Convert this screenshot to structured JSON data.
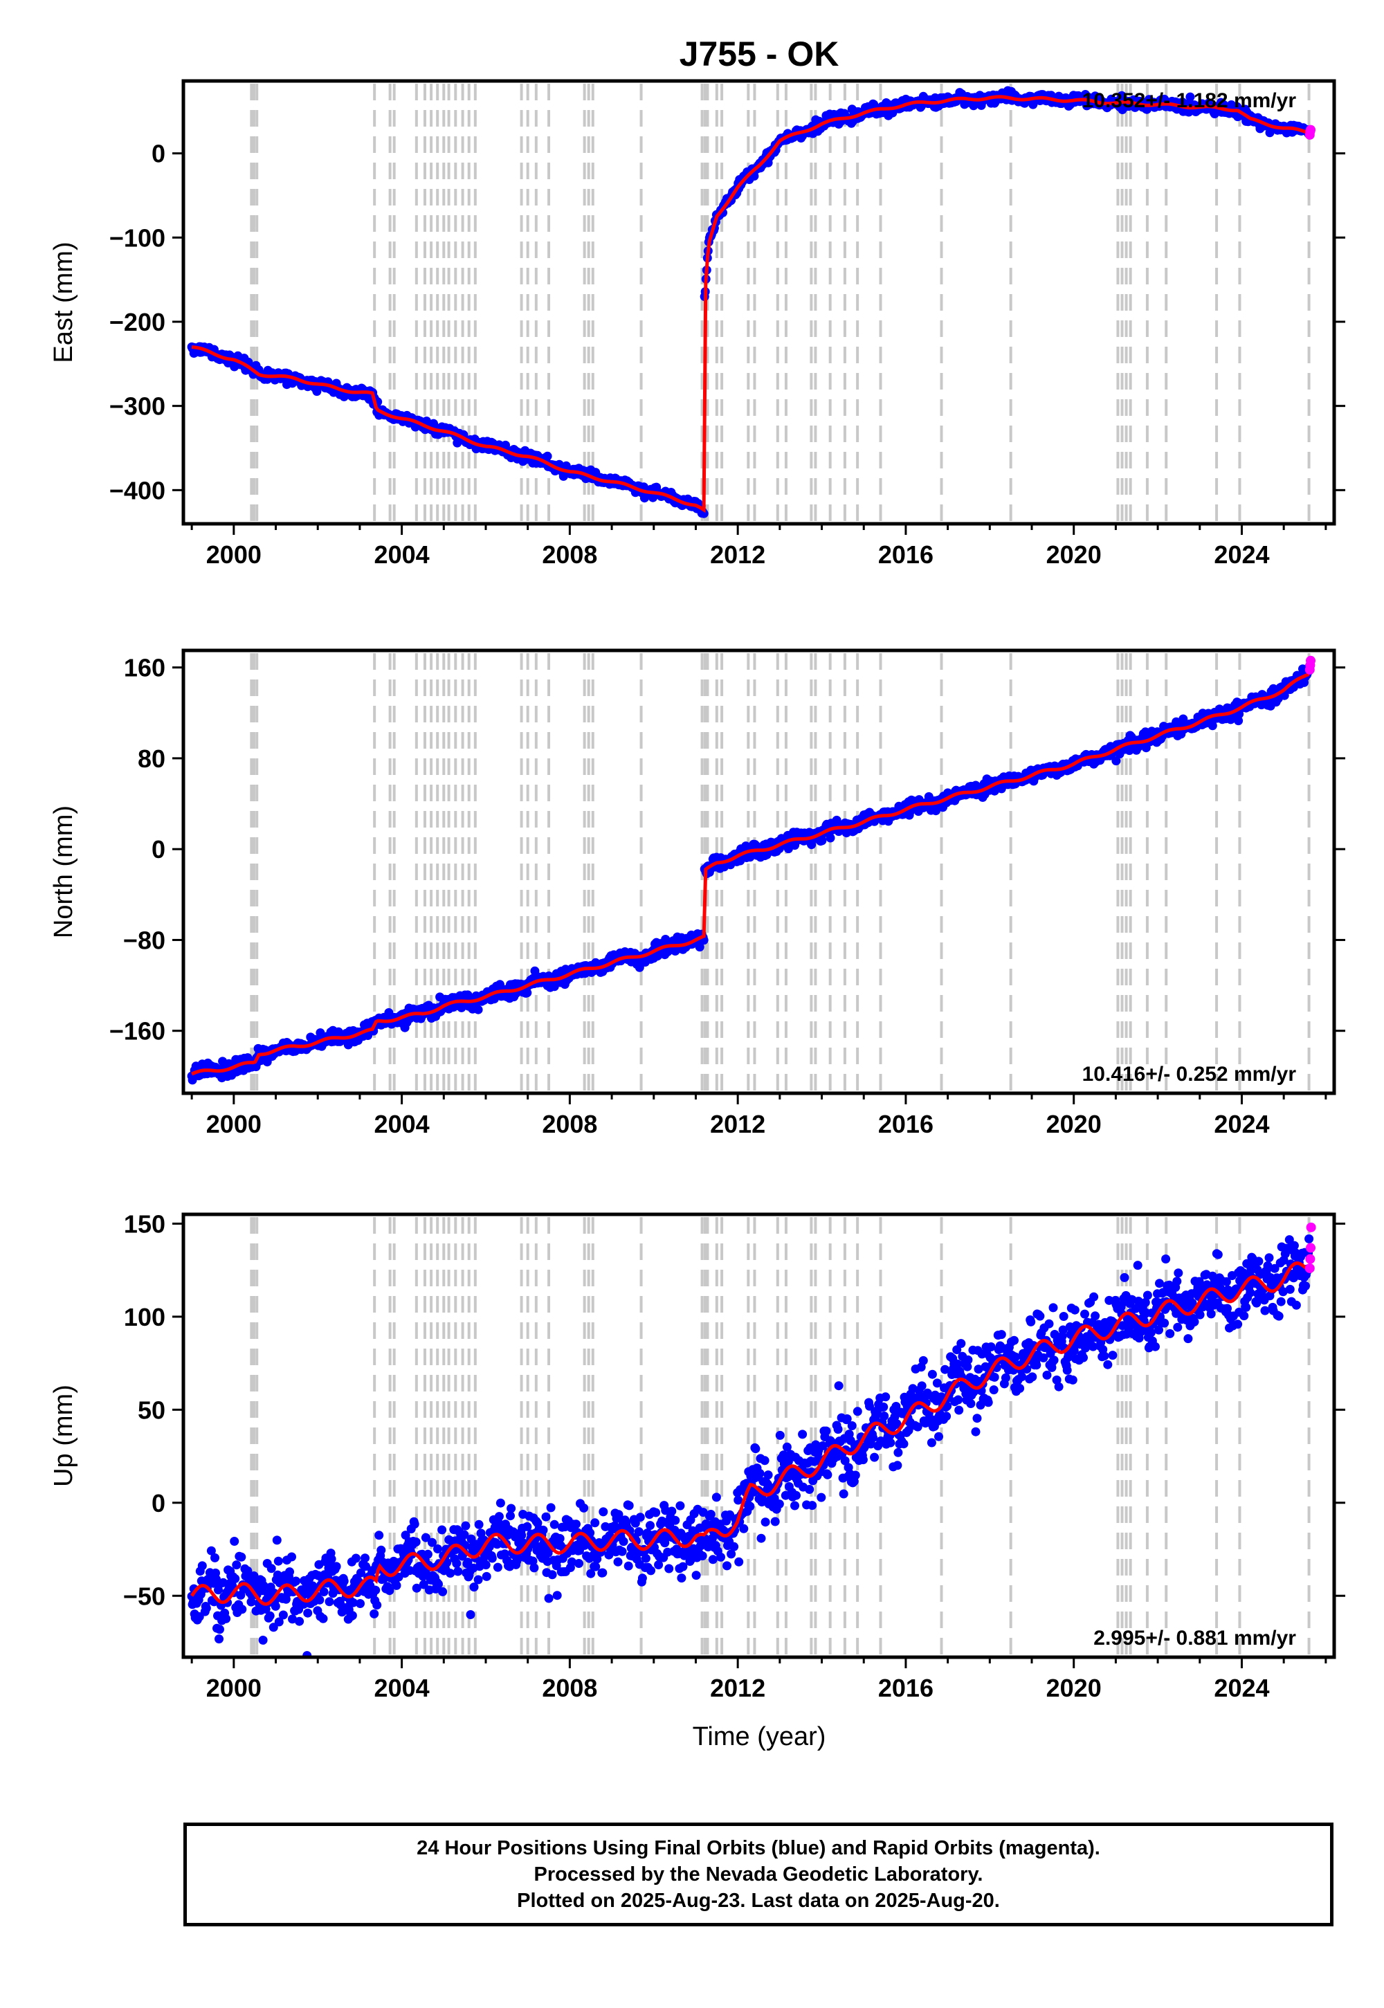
{
  "chart_title": "J755 - OK",
  "xlabel": "Time (year)",
  "footer": {
    "line1": "24 Hour Positions Using Final Orbits (blue) and Rapid Orbits (magenta).",
    "line2": "Processed by the Nevada Geodetic Laboratory.",
    "line3": "Plotted on 2025-Aug-23. Last data on 2025-Aug-20."
  },
  "colors": {
    "final_orbits": "#0000ff",
    "rapid_orbits": "#ff00ff",
    "model_fit": "#ff0000",
    "event_lines": "#c8c8c8"
  },
  "event_years": [
    2000.42,
    2000.48,
    2000.55,
    2003.35,
    2003.72,
    2003.82,
    2004.35,
    2004.55,
    2004.7,
    2004.85,
    2005.0,
    2005.12,
    2005.28,
    2005.45,
    2005.6,
    2005.75,
    2006.85,
    2007.0,
    2007.2,
    2007.5,
    2008.35,
    2008.45,
    2008.55,
    2009.7,
    2011.15,
    2011.22,
    2011.28,
    2011.5,
    2011.62,
    2012.25,
    2012.4,
    2012.95,
    2013.15,
    2013.75,
    2013.85,
    2014.2,
    2014.55,
    2014.85,
    2015.4,
    2016.85,
    2018.5,
    2021.05,
    2021.15,
    2021.25,
    2021.35,
    2021.75,
    2022.2,
    2023.4,
    2023.95,
    2025.6
  ],
  "chart_data": [
    {
      "type": "scatter",
      "name": "east",
      "ylabel": "East (mm)",
      "xlim": [
        1998.8,
        2026.2
      ],
      "ylim": [
        -440,
        86
      ],
      "xticks": [
        2000,
        2004,
        2008,
        2012,
        2016,
        2020,
        2024
      ],
      "yticks": [
        -400,
        -300,
        -200,
        -100,
        0
      ],
      "rate_label": "10.352+/- 1.182 mm/yr",
      "rate_position": "top-right",
      "legend": "none",
      "grid": false,
      "x": [
        1999.0,
        2000.0,
        2000.6,
        2001.5,
        2002.5,
        2003.3,
        2003.4,
        2004.0,
        2005.0,
        2006.0,
        2007.0,
        2008.0,
        2009.0,
        2010.0,
        2011.0,
        2011.2,
        2011.21,
        2011.3,
        2011.5,
        2012.0,
        2012.5,
        2013.0,
        2014.0,
        2015.0,
        2016.0,
        2017.0,
        2018.0,
        2019.0,
        2020.0,
        2021.0,
        2022.0,
        2023.0,
        2023.9,
        2024.2,
        2025.0,
        2025.6
      ],
      "y": [
        -230,
        -245,
        -262,
        -268,
        -280,
        -286,
        -305,
        -315,
        -330,
        -348,
        -360,
        -378,
        -390,
        -403,
        -418,
        -425,
        -175,
        -110,
        -75,
        -40,
        -15,
        15,
        35,
        48,
        58,
        63,
        66,
        65,
        63,
        60,
        58,
        55,
        52,
        40,
        30,
        25
      ],
      "rapid_x": [
        2025.62,
        2025.63,
        2025.64
      ],
      "rapid_y": [
        22,
        26,
        28
      ]
    },
    {
      "type": "scatter",
      "name": "north",
      "ylabel": "North (mm)",
      "xlim": [
        1998.8,
        2026.2
      ],
      "ylim": [
        -215,
        175
      ],
      "xticks": [
        2000,
        2004,
        2008,
        2012,
        2016,
        2020,
        2024
      ],
      "yticks": [
        -160,
        -80,
        0,
        80,
        160
      ],
      "rate_label": "10.416+/- 0.252 mm/yr",
      "rate_position": "bottom-right",
      "legend": "none",
      "grid": false,
      "x": [
        1999.0,
        2000.0,
        2000.5,
        2000.6,
        2002.0,
        2003.3,
        2003.4,
        2004.5,
        2005.0,
        2006.0,
        2007.0,
        2008.0,
        2009.0,
        2010.0,
        2011.2,
        2011.21,
        2011.5,
        2012.0,
        2013.0,
        2014.0,
        2015.0,
        2016.0,
        2017.0,
        2018.0,
        2019.0,
        2020.0,
        2021.0,
        2022.0,
        2023.0,
        2024.0,
        2025.0,
        2025.6
      ],
      "y": [
        -198,
        -192,
        -188,
        -180,
        -170,
        -160,
        -152,
        -145,
        -138,
        -130,
        -120,
        -110,
        -100,
        -90,
        -78,
        -20,
        -12,
        -6,
        4,
        14,
        24,
        35,
        45,
        55,
        65,
        75,
        88,
        100,
        112,
        125,
        140,
        155
      ],
      "rapid_x": [
        2025.62,
        2025.63,
        2025.64
      ],
      "rapid_y": [
        158,
        162,
        166
      ]
    },
    {
      "type": "scatter",
      "name": "up",
      "ylabel": "Up (mm)",
      "xlim": [
        1998.8,
        2026.2
      ],
      "ylim": [
        -83,
        155
      ],
      "xticks": [
        2000,
        2004,
        2008,
        2012,
        2016,
        2020,
        2024
      ],
      "yticks": [
        -50,
        0,
        50,
        100,
        150
      ],
      "rate_label": "2.995+/- 0.881 mm/yr",
      "rate_position": "bottom-right",
      "legend": "none",
      "grid": false,
      "x": [
        1999.0,
        2000.0,
        2001.0,
        2002.0,
        2003.0,
        2003.4,
        2003.45,
        2005.0,
        2006.0,
        2007.0,
        2008.0,
        2009.0,
        2010.0,
        2011.0,
        2011.2,
        2011.5,
        2012.0,
        2012.3,
        2013.0,
        2014.0,
        2015.0,
        2016.0,
        2017.0,
        2018.0,
        2019.0,
        2020.0,
        2021.0,
        2022.0,
        2023.0,
        2024.0,
        2025.0,
        2025.6
      ],
      "y": [
        -50,
        -48,
        -50,
        -47,
        -45,
        -45,
        -35,
        -30,
        -22,
        -22,
        -22,
        -20,
        -20,
        -18,
        -22,
        -15,
        -10,
        5,
        12,
        22,
        35,
        45,
        58,
        70,
        80,
        88,
        95,
        102,
        108,
        115,
        120,
        128
      ],
      "rapid_x": [
        2025.62,
        2025.63,
        2025.64,
        2025.65
      ],
      "rapid_y": [
        126,
        131,
        137,
        148
      ]
    }
  ]
}
